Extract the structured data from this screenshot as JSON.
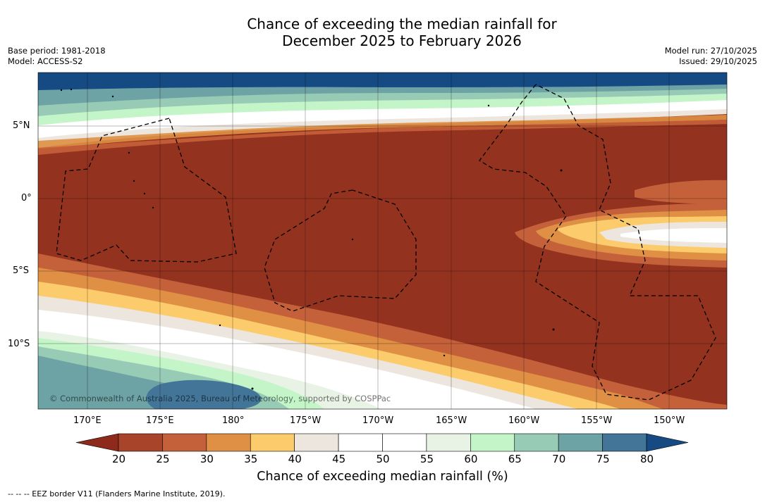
{
  "header": {
    "title_line1": "Chance of exceeding the median rainfall for",
    "title_line2": "December 2025 to February 2026",
    "base_period": "Base period: 1981-2018",
    "model": "Model: ACCESS-S2",
    "model_run": "Model run: 27/10/2025",
    "issued": "Issued: 29/10/2025"
  },
  "map": {
    "longitude_labels": [
      "170°E",
      "175°E",
      "180°",
      "175°W",
      "170°W",
      "165°W",
      "160°W",
      "155°W",
      "150°W"
    ],
    "latitude_labels": [
      "5°N",
      "0°",
      "5°S",
      "10°S"
    ],
    "copyright": "© Commonwealth of Australia 2025, Bureau of Meteorology, supported by COSPPac"
  },
  "colorbar": {
    "ticks": [
      "20",
      "25",
      "30",
      "35",
      "40",
      "45",
      "50",
      "55",
      "60",
      "65",
      "70",
      "75",
      "80"
    ],
    "colors": [
      "#8e2a1b",
      "#a8442a",
      "#c5613a",
      "#df9044",
      "#fccb6c",
      "#ece6df",
      "#ffffff",
      "#ffffff",
      "#e8f3e6",
      "#c4f5c8",
      "#98cbb5",
      "#6da3a5",
      "#437599",
      "#154b82"
    ],
    "title": "Chance of exceeding median rainfall (%)"
  },
  "footnote": "--  --  -- EEZ border V11 (Flanders Marine Institute, 2019)."
}
